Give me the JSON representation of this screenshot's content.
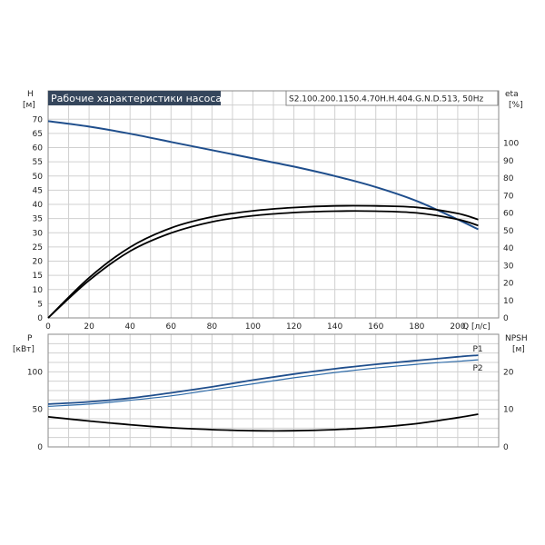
{
  "chart_data": [
    {
      "type": "line",
      "title": "Рабочие характеристики насоса",
      "subtitle": "S2.100.200.1150.4.70H.H.404.G.N.D.513, 50Hz",
      "xlabel": "Q [л/с]",
      "ylabel": "H\n[м]",
      "y2label": "eta\n[%]",
      "xlim": [
        0,
        220
      ],
      "ylim": [
        0,
        80
      ],
      "y2lim": [
        0,
        130
      ],
      "xticks": [
        0,
        20,
        40,
        60,
        80,
        100,
        120,
        140,
        160,
        180,
        200
      ],
      "yticks": [
        0,
        5,
        10,
        15,
        20,
        25,
        30,
        35,
        40,
        45,
        50,
        55,
        60,
        65,
        70
      ],
      "y2ticks": [
        0,
        10,
        20,
        30,
        40,
        50,
        60,
        70,
        80,
        90,
        100
      ],
      "grid": true,
      "series": [
        {
          "axis": "left",
          "color": "#1f4e8c",
          "x": [
            0,
            20,
            40,
            60,
            80,
            100,
            120,
            140,
            160,
            180,
            200,
            210
          ],
          "values": [
            69.3,
            67.4,
            64.9,
            62.0,
            59.1,
            56.2,
            53.3,
            50.0,
            46.1,
            41.2,
            34.7,
            31.2
          ]
        },
        {
          "axis": "right",
          "color": "#000000",
          "x": [
            0,
            20,
            40,
            60,
            80,
            100,
            120,
            140,
            160,
            180,
            200,
            210
          ],
          "values": [
            0,
            23,
            40.5,
            51.5,
            57.8,
            61.3,
            63.2,
            64.1,
            64.1,
            63.3,
            59.8,
            56.3
          ]
        },
        {
          "axis": "right",
          "color": "#000000",
          "x": [
            0,
            20,
            40,
            60,
            80,
            100,
            120,
            140,
            160,
            180,
            200,
            210
          ],
          "values": [
            0,
            21.5,
            38.2,
            48.6,
            55.0,
            58.5,
            60.3,
            61.1,
            61.1,
            60.1,
            56.4,
            52.9
          ]
        }
      ]
    },
    {
      "type": "line",
      "ylabel": "P\n[кВт]",
      "y2label": "NPSH\n[м]",
      "xlim": [
        0,
        220
      ],
      "ylim": [
        0,
        150
      ],
      "y2lim": [
        0,
        30
      ],
      "yticks": [
        0,
        50,
        100
      ],
      "y2ticks": [
        0,
        10,
        20
      ],
      "grid": true,
      "series": [
        {
          "name": "P1",
          "axis": "left",
          "color": "#1f4e8c",
          "x": [
            0,
            20,
            40,
            60,
            80,
            100,
            120,
            140,
            160,
            180,
            200,
            210
          ],
          "values": [
            57,
            60,
            65,
            72,
            80,
            89,
            97,
            104,
            110,
            115,
            120,
            122
          ]
        },
        {
          "name": "P2",
          "axis": "left",
          "color": "#2d6aa8",
          "x": [
            0,
            20,
            40,
            60,
            80,
            100,
            120,
            140,
            160,
            180,
            200,
            210
          ],
          "values": [
            54,
            57,
            62,
            68,
            76,
            84,
            92,
            99,
            105,
            110,
            114,
            116
          ]
        },
        {
          "axis": "right",
          "color": "#000000",
          "x": [
            0,
            20,
            40,
            60,
            80,
            100,
            120,
            140,
            160,
            180,
            200,
            210
          ],
          "values": [
            8.0,
            6.9,
            5.9,
            5.1,
            4.6,
            4.3,
            4.3,
            4.6,
            5.2,
            6.2,
            7.8,
            8.7
          ]
        }
      ]
    }
  ]
}
